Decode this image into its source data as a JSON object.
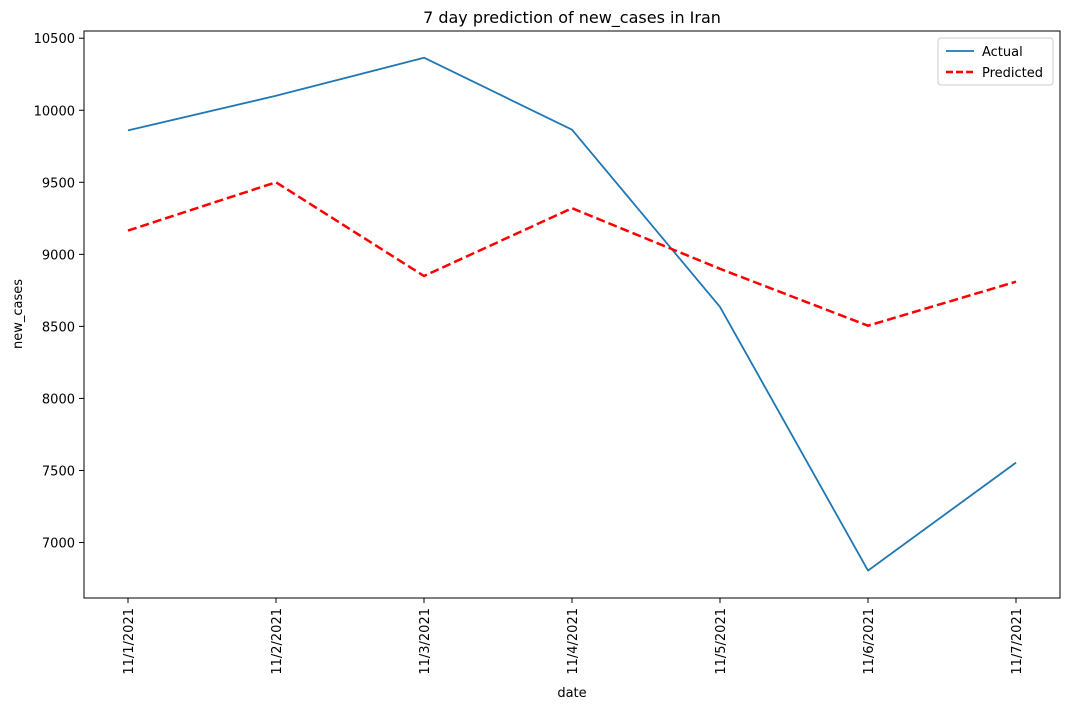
{
  "chart_data": {
    "type": "line",
    "title": "7 day prediction of new_cases in Iran",
    "xlabel": "date",
    "ylabel": "new_cases",
    "categories": [
      "11/1/2021",
      "11/2/2021",
      "11/3/2021",
      "11/4/2021",
      "11/5/2021",
      "11/6/2021",
      "11/7/2021"
    ],
    "series": [
      {
        "name": "Actual",
        "values": [
          9860,
          10100,
          10365,
          9865,
          8635,
          6805,
          7555
        ],
        "color": "#1f77b4",
        "style": "solid"
      },
      {
        "name": "Predicted",
        "values": [
          9165,
          9500,
          8850,
          9320,
          8900,
          8505,
          8810
        ],
        "color": "#ff0000",
        "style": "dashed"
      }
    ],
    "yticks": [
      7000,
      7500,
      8000,
      8500,
      9000,
      9500,
      10000,
      10500
    ],
    "ylim": [
      6615,
      10550
    ],
    "grid": false,
    "legend_position": "top-right"
  }
}
